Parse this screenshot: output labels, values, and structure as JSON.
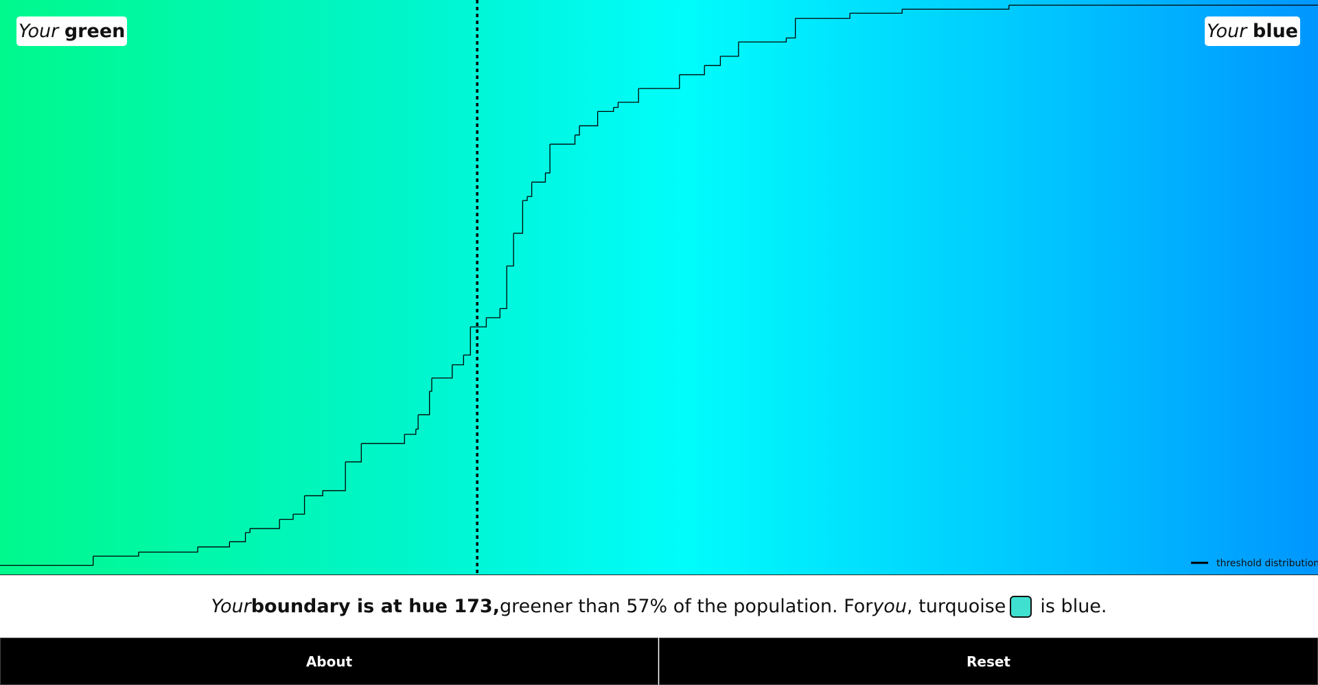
{
  "labels": {
    "left": {
      "prefix": "Your",
      "word": "green"
    },
    "right": {
      "prefix": "Your",
      "word": "blue"
    }
  },
  "chart_data": {
    "type": "step",
    "x": [
      152.0,
      156.1,
      158.1,
      160.7,
      162.1,
      162.8,
      163.0,
      164.3,
      164.9,
      165.4,
      166.2,
      167.2,
      167.9,
      169.8,
      170.3,
      170.4,
      170.9,
      171.0,
      171.9,
      172.4,
      172.7,
      173.4,
      174.0,
      174.3,
      174.6,
      175.0,
      175.2,
      175.4,
      176.0,
      176.2,
      177.3,
      177.5,
      178.3,
      179.0,
      179.2,
      180.1,
      181.9,
      183.0,
      183.7,
      184.5,
      186.6,
      187.0,
      189.4,
      191.7,
      196.4
    ],
    "series": [
      {
        "name": "threshold distribution",
        "color": "#000000",
        "values": [
          1.6,
          3.2,
          3.9,
          4.8,
          5.7,
          7.3,
          8.0,
          9.6,
          10.5,
          13.7,
          14.6,
          19.6,
          22.8,
          24.4,
          25.3,
          27.8,
          31.9,
          34.2,
          36.5,
          38.2,
          43.1,
          44.7,
          46.3,
          53.7,
          59.4,
          65.1,
          65.8,
          68.3,
          69.9,
          74.9,
          76.5,
          78.1,
          80.6,
          81.3,
          82.2,
          84.6,
          87.0,
          88.6,
          90.2,
          92.7,
          93.4,
          96.8,
          97.7,
          98.4,
          99.1
        ]
      }
    ],
    "xlim": [
      152,
      210
    ],
    "ylim": [
      0,
      100
    ],
    "boundary": 173
  },
  "sentence": {
    "your": "Your",
    "bold_pre": "boundary is at hue",
    "bold_post": ",",
    "middle": "greener than 57% of the population. For",
    "you": "you",
    "turquoise": ", turquoise",
    "end": "is blue."
  },
  "buttons": [
    "About",
    "Reset"
  ]
}
